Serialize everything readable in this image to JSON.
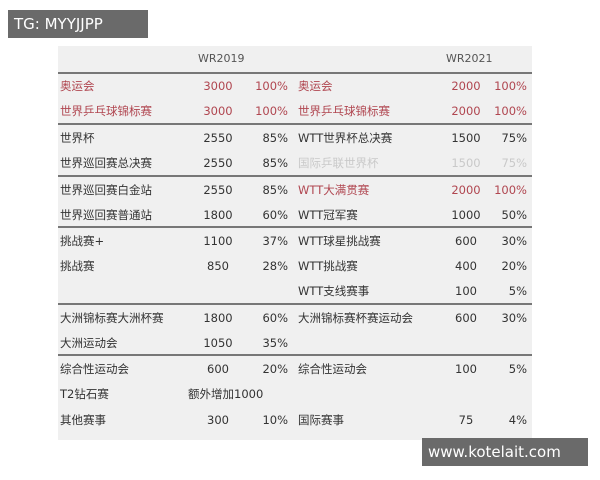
{
  "watermarks": {
    "top_left": "TG: MYYJJPP",
    "bottom_right": "www.kotelait.com"
  },
  "headers": {
    "left": "WR2019",
    "right": "WR2021"
  },
  "colors": {
    "highlight": "#b04650",
    "faded": "#c9c9c9"
  },
  "rows": [
    {
      "n1": "奥运会",
      "v1": "3000",
      "p1": "100%",
      "n2": "奥运会",
      "v2": "2000",
      "p2": "100%",
      "style1": "red",
      "style2": "red"
    },
    {
      "n1": "世界乒乓球锦标赛",
      "v1": "3000",
      "p1": "100%",
      "n2": "世界乒乓球锦标赛",
      "v2": "2000",
      "p2": "100%",
      "style1": "red",
      "style2": "red"
    },
    {
      "n1": "世界杯",
      "v1": "2550",
      "p1": "85%",
      "n2": "WTT世界杯总决赛",
      "v2": "1500",
      "p2": "75%"
    },
    {
      "n1": "世界巡回赛总决赛",
      "v1": "2550",
      "p1": "85%",
      "n2": "国际乒联世界杯",
      "v2": "1500",
      "p2": "75%",
      "style2": "faded"
    },
    {
      "n1": "世界巡回赛白金站",
      "v1": "2550",
      "p1": "85%",
      "n2": "WTT大满贯赛",
      "v2": "2000",
      "p2": "100%",
      "style2": "red"
    },
    {
      "n1": "世界巡回赛普通站",
      "v1": "1800",
      "p1": "60%",
      "n2": "WTT冠军赛",
      "v2": "1000",
      "p2": "50%"
    },
    {
      "n1": "挑战赛+",
      "v1": "1100",
      "p1": "37%",
      "n2": "WTT球星挑战赛",
      "v2": "600",
      "p2": "30%"
    },
    {
      "n1": "挑战赛",
      "v1": "850",
      "p1": "28%",
      "n2": "WTT挑战赛",
      "v2": "400",
      "p2": "20%"
    },
    {
      "n1": "",
      "v1": "",
      "p1": "",
      "n2": "WTT支线赛事",
      "v2": "100",
      "p2": "5%"
    },
    {
      "n1": "大洲锦标赛大洲杯赛",
      "v1": "1800",
      "p1": "60%",
      "n2": "大洲锦标赛杯赛运动会",
      "v2": "600",
      "p2": "30%"
    },
    {
      "n1": "大洲运动会",
      "v1": "1050",
      "p1": "35%",
      "n2": "",
      "v2": "",
      "p2": ""
    },
    {
      "n1": "综合性运动会",
      "v1": "600",
      "p1": "20%",
      "n2": "综合性运动会",
      "v2": "100",
      "p2": "5%"
    },
    {
      "n1": "T2钻石赛",
      "v1": "额外增加1000",
      "p1": "",
      "n2": "",
      "v2": "",
      "p2": ""
    },
    {
      "n1": "其他赛事",
      "v1": "300",
      "p1": "10%",
      "n2": "国际赛事",
      "v2": "75",
      "p2": "4%"
    }
  ]
}
